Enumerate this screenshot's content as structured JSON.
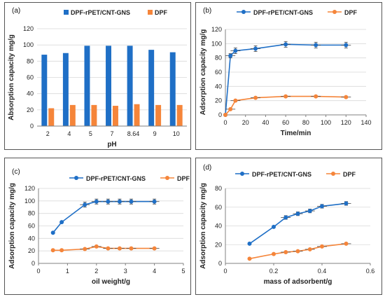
{
  "colors": {
    "blue": "#1f6fc6",
    "orange": "#f5853a",
    "grid": "#d9d9d9",
    "axis": "#808080"
  },
  "chart_data": [
    {
      "panel_label": "(a)",
      "type": "bar",
      "categories": [
        "2",
        "4",
        "5",
        "7",
        "8.64",
        "9",
        "10"
      ],
      "series": [
        {
          "name": "DPF-rPET/CNT-GNS",
          "values": [
            88,
            90,
            99,
            99,
            99,
            94,
            91
          ]
        },
        {
          "name": "DPF",
          "values": [
            22,
            26,
            26,
            25,
            27,
            26,
            26
          ]
        }
      ],
      "xlabel": "pH",
      "ylabel": "Absorption capacity mg/g",
      "ylim": [
        0,
        120
      ],
      "yticks": [
        "0",
        "20",
        "40",
        "60",
        "80",
        "100",
        "120"
      ],
      "grid": true,
      "legend": "top"
    },
    {
      "panel_label": "(b)",
      "type": "line",
      "series": [
        {
          "name": "DPF-rPET/CNT-GNS",
          "x": [
            0,
            5,
            10,
            30,
            60,
            90,
            120
          ],
          "y": [
            0,
            83,
            90,
            93,
            99,
            98,
            98
          ],
          "yerr": [
            0,
            3,
            4,
            4,
            4,
            4,
            4
          ]
        },
        {
          "name": "DPF",
          "x": [
            0,
            5,
            10,
            30,
            60,
            90,
            120
          ],
          "y": [
            0,
            8,
            20,
            24,
            26,
            26,
            25
          ],
          "yerr": [
            0,
            1,
            1,
            1,
            1,
            1,
            1
          ]
        }
      ],
      "xlabel": "Time/min",
      "ylabel": "Adsorption capacity mg/g",
      "xlim": [
        0,
        140
      ],
      "ylim": [
        0,
        120
      ],
      "xticks": [
        "0",
        "20",
        "40",
        "60",
        "80",
        "100",
        "120",
        "140"
      ],
      "yticks": [
        "0",
        "20",
        "40",
        "60",
        "80",
        "100",
        "120"
      ],
      "grid": true,
      "legend": "top"
    },
    {
      "panel_label": "(c)",
      "type": "line",
      "series": [
        {
          "name": "DPF-rPET/CNT-GNS",
          "x": [
            0.5,
            0.8,
            1.6,
            2.0,
            2.4,
            2.8,
            3.2,
            4.0
          ],
          "y": [
            49,
            66,
            94,
            99,
            99,
            99,
            99,
            99
          ],
          "yerr": [
            0,
            0,
            4,
            4,
            4,
            4,
            4,
            4
          ]
        },
        {
          "name": "DPF",
          "x": [
            0.5,
            0.8,
            1.6,
            2.0,
            2.4,
            2.8,
            3.2,
            4.0
          ],
          "y": [
            21,
            21,
            23,
            27,
            24,
            24,
            24,
            24
          ],
          "yerr": [
            0,
            0,
            1,
            1,
            1,
            1,
            1,
            1
          ]
        }
      ],
      "xlabel": "oil weight/g",
      "ylabel": "Adsorption capacity mg/g",
      "xlim": [
        0,
        5
      ],
      "ylim": [
        0,
        120
      ],
      "xticks": [
        "0",
        "1",
        "2",
        "3",
        "4",
        "5"
      ],
      "yticks": [
        "0",
        "20",
        "40",
        "60",
        "80",
        "100",
        "120"
      ],
      "grid": true,
      "legend": "top"
    },
    {
      "panel_label": "(d)",
      "type": "line",
      "series": [
        {
          "name": "DPF-rPET/CNT-GNS",
          "x": [
            0.1,
            0.2,
            0.25,
            0.3,
            0.35,
            0.4,
            0.5
          ],
          "y": [
            21,
            39,
            49,
            53,
            56,
            61,
            64
          ],
          "yerr": [
            0,
            0,
            2,
            2,
            2,
            2,
            2
          ]
        },
        {
          "name": "DPF",
          "x": [
            0.1,
            0.2,
            0.25,
            0.3,
            0.35,
            0.4,
            0.5
          ],
          "y": [
            5,
            10,
            12,
            13,
            15,
            18,
            21
          ],
          "yerr": [
            0,
            0,
            0.5,
            0.5,
            0.5,
            0.5,
            0.5
          ]
        }
      ],
      "xlabel": "mass of adsorbent/g",
      "ylabel": "Adsorption capacity mg/g",
      "xlim": [
        0,
        0.6
      ],
      "ylim": [
        0,
        80
      ],
      "xticks": [
        "0",
        "0.2",
        "0.4",
        "0.6"
      ],
      "yticks": [
        "0",
        "20",
        "40",
        "60",
        "80"
      ],
      "grid": true,
      "legend": "top"
    }
  ]
}
